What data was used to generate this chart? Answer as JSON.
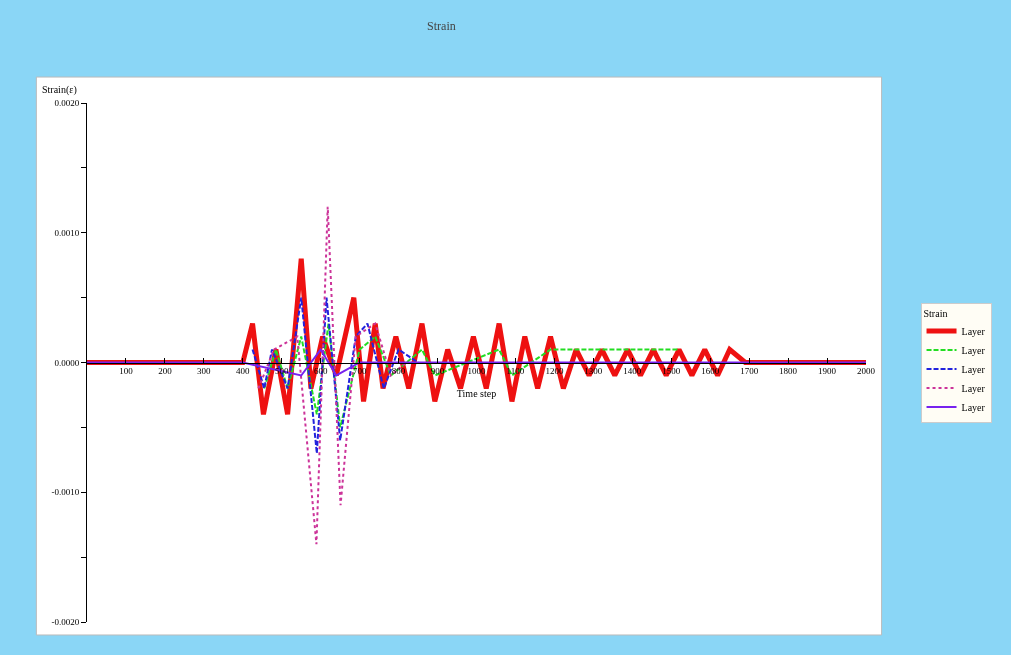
{
  "chart_data": {
    "type": "line",
    "title": "Strain",
    "xlabel": "Time step",
    "ylabel": "Strain(ε)",
    "legend_title": "Strain",
    "xlim": [
      0,
      2000
    ],
    "xticks": [
      100,
      200,
      300,
      400,
      500,
      600,
      700,
      800,
      900,
      1000,
      1100,
      1200,
      1300,
      1400,
      1500,
      1600,
      1700,
      1800,
      1900,
      2000
    ],
    "ylim": [
      -0.002,
      0.002
    ],
    "yticks": [
      {
        "value": 0.002,
        "label": "0.0020"
      },
      {
        "value": 0.0015,
        "label": null
      },
      {
        "value": 0.001,
        "label": "0.0010"
      },
      {
        "value": 0.0005,
        "label": null
      },
      {
        "value": 0,
        "label": "0.0000"
      },
      {
        "value": -0.0005,
        "label": null
      },
      {
        "value": -0.001,
        "label": "-0.0010"
      },
      {
        "value": -0.0015,
        "label": null
      },
      {
        "value": -0.002,
        "label": "-0.0020"
      }
    ],
    "legend": "right",
    "marker": "none",
    "series": [
      {
        "name": "Layer",
        "color": "#ee1111",
        "line_style": "solid",
        "x": [
          0,
          400,
          425,
          453,
          485,
          515,
          550,
          575,
          605,
          640,
          685,
          710,
          740,
          760,
          793,
          826,
          860,
          893,
          926,
          959,
          992,
          1025,
          1058,
          1091,
          1124,
          1157,
          1190,
          1223,
          1256,
          1289,
          1322,
          1355,
          1388,
          1421,
          1454,
          1487,
          1520,
          1553,
          1586,
          1619,
          1650,
          1690,
          2000
        ],
        "values": [
          0,
          0,
          0.0003,
          -0.0004,
          0.0001,
          -0.0004,
          0.0008,
          -0.0002,
          0.0002,
          -0.0001,
          0.0005,
          -0.0003,
          0.0003,
          -0.0002,
          0.0002,
          -0.0002,
          0.0003,
          -0.0003,
          0.0001,
          -0.0002,
          0.0002,
          -0.0002,
          0.0003,
          -0.0003,
          0.0002,
          -0.0002,
          0.0002,
          -0.0002,
          0.0001,
          -0.0001,
          0.0001,
          -0.0001,
          0.0001,
          -0.0001,
          0.0001,
          -0.0001,
          0.0001,
          -0.0001,
          0.0001,
          -0.0001,
          0.0001,
          0,
          0
        ]
      },
      {
        "name": "Layer",
        "color": "#22dd22",
        "line_style": "dashed",
        "x": [
          455,
          485,
          515,
          550,
          590,
          620,
          650,
          700,
          740,
          780,
          820,
          860,
          893,
          1058,
          1091,
          1190,
          1454,
          1520
        ],
        "values": [
          -0.0002,
          0.0001,
          -0.0002,
          0.0002,
          -0.0004,
          0.0003,
          -0.0005,
          0.0001,
          0.0002,
          -0.0001,
          0,
          0.0001,
          -0.0001,
          0.0001,
          -0.0001,
          0.0001,
          0.0001,
          0.0001
        ]
      },
      {
        "name": "Layer",
        "color": "#2222dd",
        "line_style": "dashed",
        "x": [
          425,
          455,
          475,
          515,
          550,
          590,
          615,
          650,
          690,
          720,
          762,
          800,
          850
        ],
        "values": [
          0.0001,
          -0.0002,
          0.0001,
          -0.0002,
          0.0005,
          -0.0007,
          0.0005,
          -0.0006,
          0.0002,
          0.0003,
          -0.0002,
          0.0001,
          0
        ]
      },
      {
        "name": "Layer",
        "color": "#cc3399",
        "line_style": "dotted",
        "x": [
          440,
          480,
          540,
          589,
          618,
          651,
          690,
          740,
          780,
          820
        ],
        "values": [
          -0.0002,
          0.0001,
          0.0002,
          -0.0014,
          0.0012,
          -0.0011,
          0.0002,
          0.0003,
          -0.0001,
          0
        ]
      },
      {
        "name": "Layer",
        "color": "#7722ee",
        "line_style": "solid",
        "x": [
          0,
          400,
          550,
          600,
          640,
          700,
          800,
          2000
        ],
        "values": [
          0,
          0,
          -0.0001,
          0.0001,
          -0.0001,
          0,
          0,
          0
        ]
      }
    ]
  }
}
